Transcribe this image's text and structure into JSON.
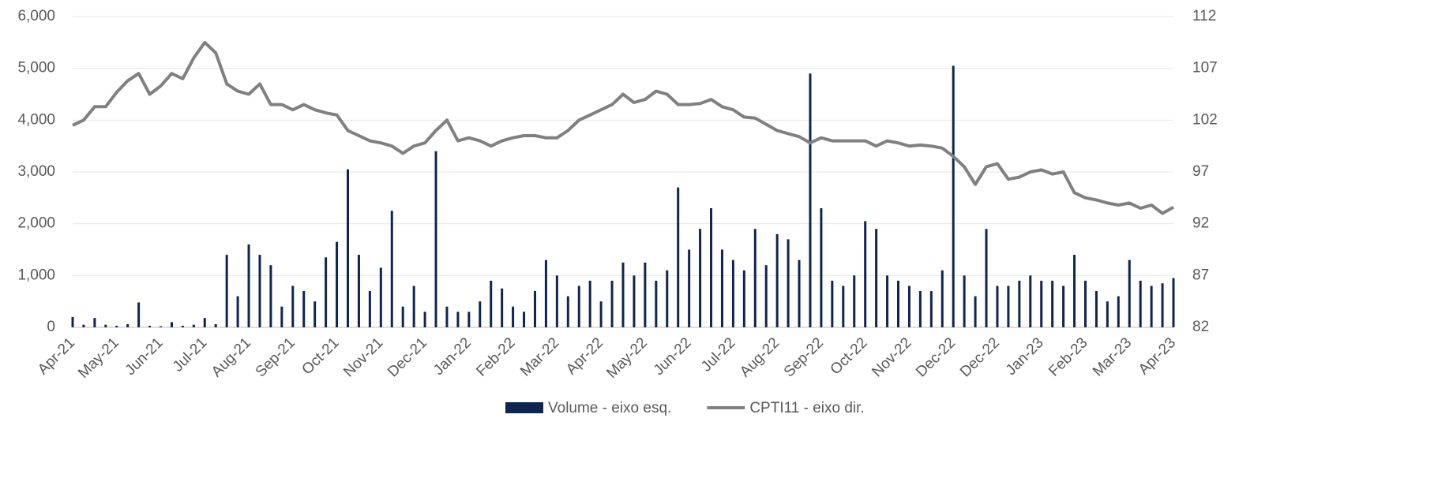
{
  "chart_data": {
    "type": "bar_line",
    "categories": [
      "Apr-21",
      null,
      null,
      null,
      "May-21",
      null,
      null,
      null,
      "Jun-21",
      null,
      null,
      null,
      "Jul-21",
      null,
      null,
      null,
      "Aug-21",
      null,
      null,
      null,
      "Sep-21",
      null,
      null,
      null,
      "Oct-21",
      null,
      null,
      null,
      "Nov-21",
      null,
      null,
      null,
      "Dec-21",
      null,
      null,
      null,
      "Jan-22",
      null,
      null,
      null,
      "Feb-22",
      null,
      null,
      null,
      "Mar-22",
      null,
      null,
      null,
      "Apr-22",
      null,
      null,
      null,
      "May-22",
      null,
      null,
      null,
      "Jun-22",
      null,
      null,
      null,
      "Jul-22",
      null,
      null,
      null,
      "Aug-22",
      null,
      null,
      null,
      "Sep-22",
      null,
      null,
      null,
      "Oct-22",
      null,
      null,
      null,
      "Nov-22",
      null,
      null,
      null,
      "Dec-22",
      null,
      null,
      null,
      "Dec-22",
      null,
      null,
      null,
      "Jan-23",
      null,
      null,
      null,
      "Feb-23",
      null,
      null,
      null,
      "Mar-23",
      null,
      null,
      null,
      "Apr-23"
    ],
    "series": [
      {
        "name": "Volume - eixo esq.",
        "color": "#0e2452",
        "kind": "bar",
        "values": [
          200,
          50,
          180,
          50,
          30,
          60,
          480,
          30,
          20,
          100,
          30,
          50,
          180,
          60,
          1400,
          600,
          1600,
          1400,
          1200,
          400,
          800,
          700,
          500,
          1350,
          1650,
          3050,
          1400,
          700,
          1150,
          2250,
          400,
          800,
          300,
          3400,
          400,
          300,
          300,
          500,
          900,
          750,
          400,
          300,
          700,
          1300,
          1000,
          600,
          800,
          900,
          500,
          900,
          1250,
          1000,
          1250,
          900,
          1100,
          2700,
          1500,
          1900,
          2300,
          1500,
          1300,
          1100,
          1900,
          1200,
          1800,
          1700,
          1300,
          4900,
          2300,
          900,
          800,
          1000,
          2050,
          1900,
          1000,
          900,
          800,
          700,
          700,
          1100,
          5050,
          1000,
          600,
          1900,
          800,
          800,
          900,
          1000,
          900,
          900,
          800,
          1400,
          900,
          700,
          500,
          600,
          1300,
          900,
          800,
          850,
          950
        ]
      },
      {
        "name": "CPTI11 - eixo dir.",
        "color": "#808080",
        "kind": "line",
        "axis": "y2",
        "values": [
          101.5,
          102,
          103.3,
          103.3,
          104.7,
          105.8,
          106.5,
          104.5,
          105.3,
          106.5,
          106,
          108,
          109.5,
          108.5,
          105.5,
          104.8,
          104.5,
          105.5,
          103.5,
          103.5,
          103,
          103.5,
          103,
          102.7,
          102.5,
          101,
          100.5,
          100,
          99.8,
          99.5,
          98.8,
          99.5,
          99.8,
          101,
          102,
          100,
          100.3,
          100,
          99.5,
          100,
          100.3,
          100.5,
          100.5,
          100.3,
          100.3,
          101,
          102,
          102.5,
          103,
          103.5,
          104.5,
          103.7,
          104,
          104.8,
          104.5,
          103.5,
          103.5,
          103.6,
          104,
          103.3,
          103,
          102.3,
          102.2,
          101.6,
          101,
          100.7,
          100.4,
          99.8,
          100.3,
          100,
          100,
          100,
          100,
          99.5,
          100,
          99.8,
          99.5,
          99.6,
          99.5,
          99.3,
          98.5,
          97.5,
          95.8,
          97.5,
          97.8,
          96.3,
          96.5,
          97,
          97.2,
          96.8,
          97,
          95,
          94.5,
          94.3,
          94,
          93.8,
          94,
          93.5,
          93.8,
          93,
          93.6
        ]
      }
    ],
    "ylim": [
      0,
      6000
    ],
    "yticks": [
      0,
      {
        "value": 1000,
        "label": "1,000"
      },
      {
        "value": 2000,
        "label": "2,000"
      },
      {
        "value": 3000,
        "label": "3,000"
      },
      {
        "value": 4000,
        "label": "4,000"
      },
      {
        "value": 5000,
        "label": "5,000"
      },
      {
        "value": 6000,
        "label": "6,000"
      }
    ],
    "y2lim": [
      82,
      112
    ],
    "y2ticks": [
      82,
      87,
      92,
      97,
      102,
      107,
      112
    ],
    "grid": true
  }
}
